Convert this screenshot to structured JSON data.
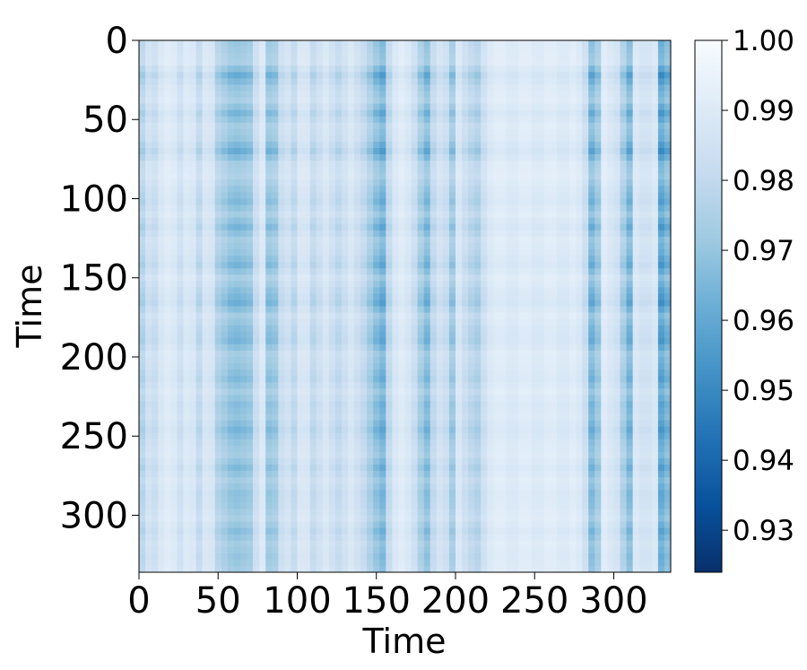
{
  "chart_data": {
    "type": "heatmap",
    "title": "",
    "xlabel": "Time",
    "ylabel": "Time",
    "x_range": [
      0,
      336
    ],
    "y_range": [
      0,
      336
    ],
    "x_ticks": [
      0,
      50,
      100,
      150,
      200,
      250,
      300
    ],
    "y_ticks": [
      0,
      50,
      100,
      150,
      200,
      250,
      300
    ],
    "y_inverted": true,
    "grid": false,
    "colormap": "Blues_r",
    "colorbar": {
      "vmin": 0.924,
      "vmax": 1.0,
      "ticks": [
        0.93,
        0.94,
        0.95,
        0.96,
        0.97,
        0.98,
        0.99,
        1.0
      ],
      "tick_labels": [
        "0.93",
        "0.94",
        "0.95",
        "0.96",
        "0.97",
        "0.98",
        "0.99",
        "1.00"
      ],
      "placement": "right"
    },
    "column_profile": {
      "note_x": [
        0,
        3,
        8,
        14,
        20,
        26,
        32,
        38,
        44,
        50,
        55,
        60,
        66,
        72,
        77,
        80,
        86,
        92,
        98,
        104,
        110,
        118,
        126,
        134,
        142,
        150,
        154,
        158,
        164,
        170,
        176,
        181,
        186,
        192,
        198,
        202,
        208,
        214,
        220,
        228,
        236,
        244,
        252,
        260,
        268,
        276,
        284,
        288,
        292,
        298,
        304,
        309,
        314,
        320,
        326,
        330,
        336
      ],
      "similarity": [
        0.935,
        0.99,
        0.975,
        0.985,
        0.99,
        0.98,
        0.99,
        0.975,
        0.99,
        0.97,
        0.965,
        0.96,
        0.962,
        0.965,
        0.998,
        0.962,
        0.965,
        0.985,
        0.975,
        0.99,
        0.975,
        0.985,
        0.975,
        0.985,
        0.975,
        0.96,
        0.955,
        0.975,
        0.99,
        0.985,
        0.975,
        0.955,
        0.975,
        0.985,
        0.965,
        0.985,
        0.975,
        0.97,
        0.985,
        0.99,
        0.985,
        0.99,
        0.985,
        0.99,
        0.985,
        0.99,
        0.975,
        0.94,
        0.99,
        0.985,
        0.98,
        0.95,
        0.985,
        0.98,
        0.985,
        0.95,
        0.96
      ]
    },
    "row_profile": {
      "note_y": [
        0,
        8,
        14,
        22,
        30,
        38,
        46,
        54,
        62,
        70,
        78,
        86,
        94,
        102,
        110,
        118,
        126,
        134,
        142,
        150,
        158,
        166,
        174,
        182,
        190,
        198,
        206,
        214,
        222,
        230,
        238,
        246,
        254,
        262,
        270,
        278,
        286,
        294,
        302,
        310,
        318,
        326,
        336
      ],
      "similarity": [
        0.985,
        0.99,
        0.992,
        0.97,
        0.985,
        0.992,
        0.975,
        0.99,
        0.985,
        0.97,
        0.99,
        0.994,
        0.985,
        0.978,
        0.99,
        0.975,
        0.99,
        0.985,
        0.975,
        0.992,
        0.98,
        0.972,
        0.99,
        0.98,
        0.975,
        0.99,
        0.985,
        0.978,
        0.99,
        0.98,
        0.985,
        0.975,
        0.985,
        0.99,
        0.978,
        0.99,
        0.982,
        0.985,
        0.992,
        0.98,
        0.99,
        0.985,
        0.99
      ]
    }
  }
}
